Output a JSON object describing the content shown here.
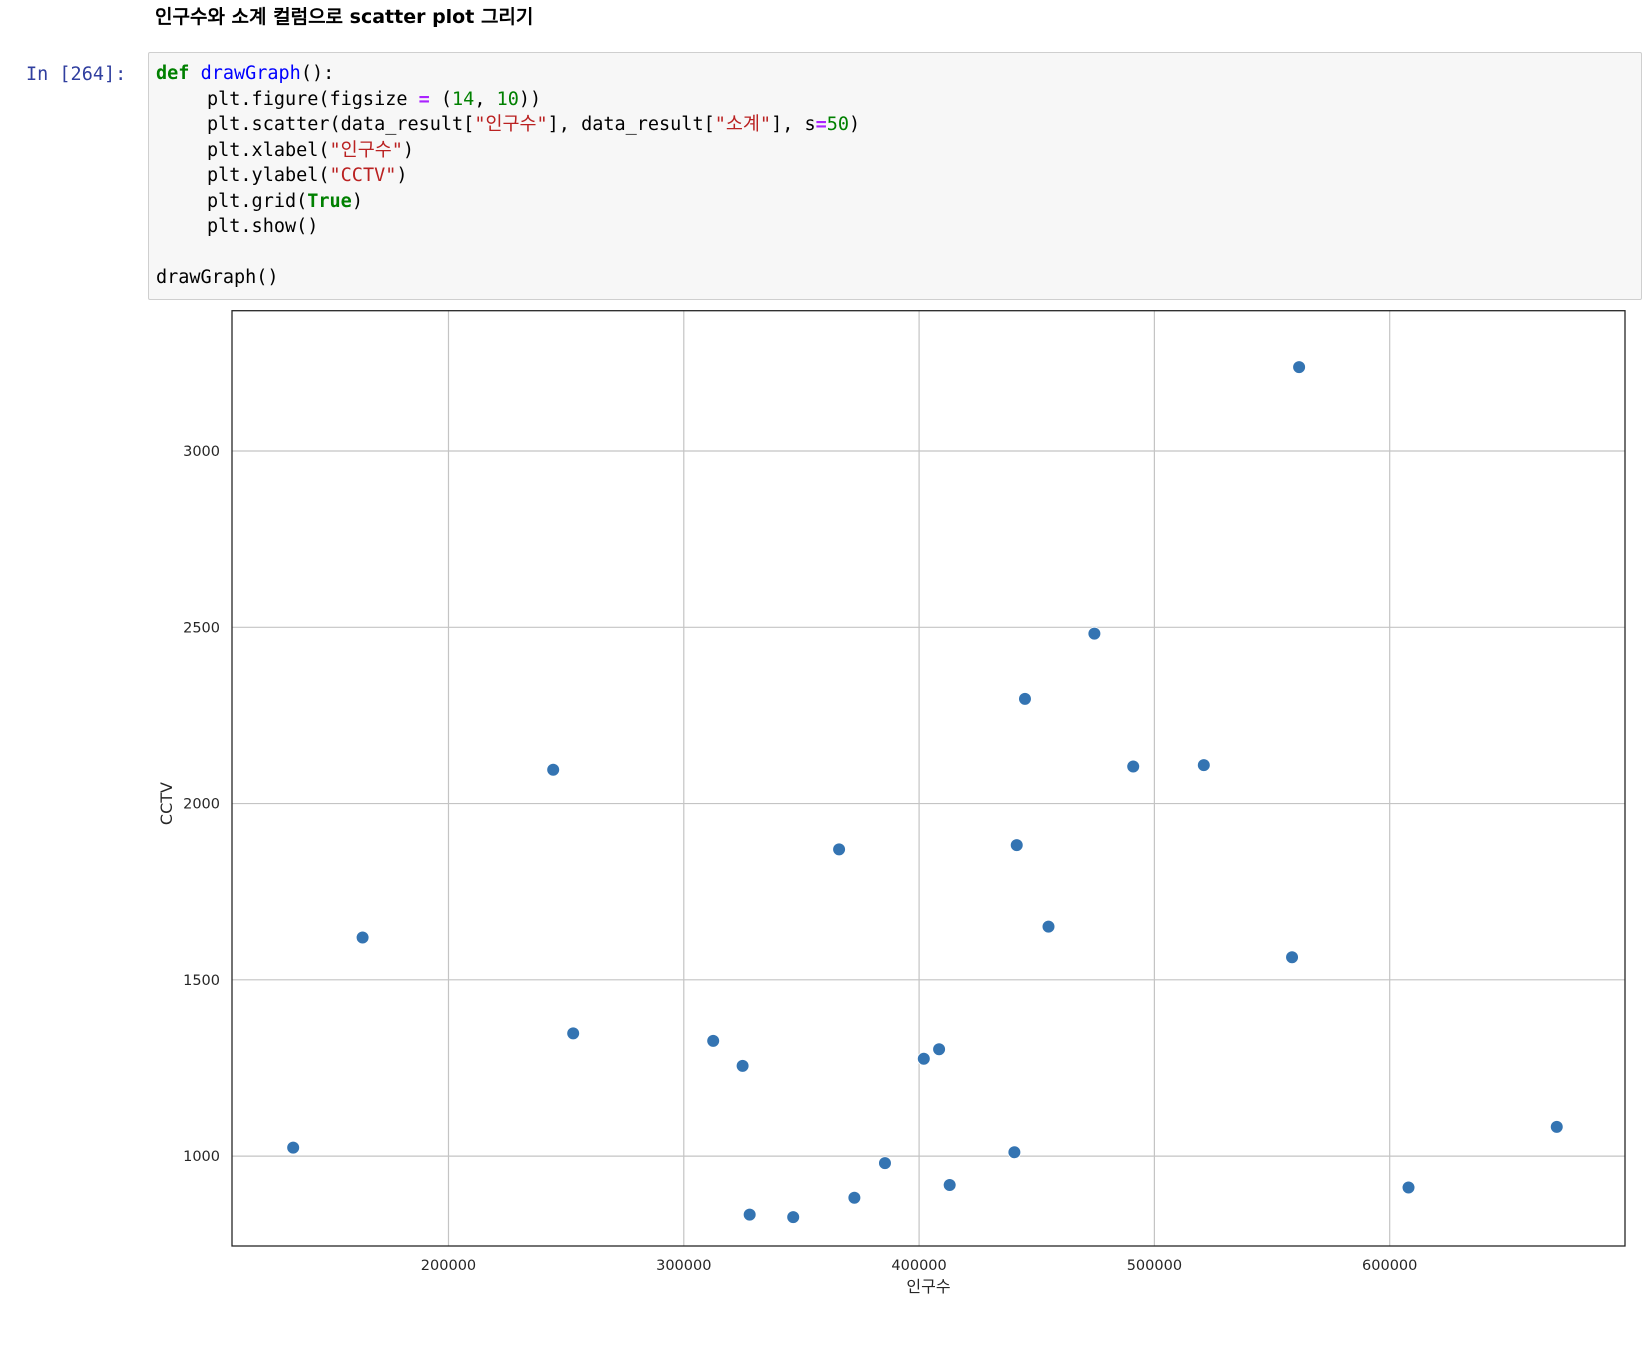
{
  "heading": "인구수와 소계 컬럼으로 scatter plot 그리기",
  "cell": {
    "prompt": "In [264]:",
    "code": {
      "def_kw": "def",
      "func_name": "drawGraph",
      "l1_tail": "():",
      "l2_a": "plt.figure(figsize ",
      "l2_op": "=",
      "l2_b": " (",
      "l2_n1": "14",
      "l2_c": ", ",
      "l2_n2": "10",
      "l2_d": "))",
      "l3_a": "plt.scatter(data_result[",
      "l3_s1": "\"인구수\"",
      "l3_b": "], data_result[",
      "l3_s2": "\"소계\"",
      "l3_c": "], s",
      "l3_op": "=",
      "l3_n": "50",
      "l3_d": ")",
      "l4_a": "plt.xlabel(",
      "l4_s": "\"인구수\"",
      "l4_b": ")",
      "l5_a": "plt.ylabel(",
      "l5_s": "\"CCTV\"",
      "l5_b": ")",
      "l6_a": "plt.grid(",
      "l6_kw": "True",
      "l6_b": ")",
      "l7": "plt.show()",
      "l9": "drawGraph()"
    }
  },
  "chart_data": {
    "type": "scatter",
    "title": "",
    "xlabel": "인구수",
    "ylabel": "CCTV",
    "xlim": [
      108000,
      700000
    ],
    "ylim": [
      745,
      3400
    ],
    "xticks": [
      200000,
      300000,
      400000,
      500000,
      600000
    ],
    "yticks": [
      1000,
      1500,
      2000,
      2500,
      3000
    ],
    "grid": true,
    "marker_color": "#3474b2",
    "points": [
      {
        "x": 134000,
        "y": 1024
      },
      {
        "x": 163500,
        "y": 1620
      },
      {
        "x": 244500,
        "y": 2096
      },
      {
        "x": 253000,
        "y": 1348
      },
      {
        "x": 312500,
        "y": 1327
      },
      {
        "x": 325000,
        "y": 1256
      },
      {
        "x": 328000,
        "y": 834
      },
      {
        "x": 346500,
        "y": 827
      },
      {
        "x": 366000,
        "y": 1870
      },
      {
        "x": 372500,
        "y": 882
      },
      {
        "x": 385500,
        "y": 980
      },
      {
        "x": 402000,
        "y": 1276
      },
      {
        "x": 408500,
        "y": 1303
      },
      {
        "x": 413000,
        "y": 918
      },
      {
        "x": 440500,
        "y": 1011
      },
      {
        "x": 441500,
        "y": 1882
      },
      {
        "x": 445000,
        "y": 2297
      },
      {
        "x": 455000,
        "y": 1651
      },
      {
        "x": 474500,
        "y": 2482
      },
      {
        "x": 491000,
        "y": 2105
      },
      {
        "x": 521000,
        "y": 2109
      },
      {
        "x": 558500,
        "y": 1564
      },
      {
        "x": 561500,
        "y": 3238
      },
      {
        "x": 608000,
        "y": 911
      },
      {
        "x": 671000,
        "y": 1083
      }
    ]
  }
}
